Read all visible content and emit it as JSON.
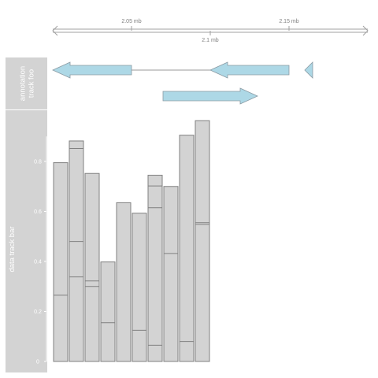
{
  "chart_data": {
    "type": "bar",
    "genome_axis": {
      "unit": "mb",
      "range": [
        2.0,
        2.2
      ],
      "ticks": [
        {
          "value": 2.05,
          "label": "2.05 mb"
        },
        {
          "value": 2.1,
          "label": "2.1 mb"
        },
        {
          "value": 2.15,
          "label": "2.15 mb"
        }
      ]
    },
    "tracks": [
      {
        "name": "annotation track foo",
        "type": "annotation",
        "features": [
          {
            "start": 2.0,
            "end": 2.05,
            "strand": "-",
            "row": 0
          },
          {
            "start": 2.1,
            "end": 2.15,
            "strand": "-",
            "row": 0
          },
          {
            "start": 2.16,
            "end": 2.165,
            "strand": "-",
            "row": 0
          },
          {
            "start": 2.07,
            "end": 2.13,
            "strand": "+",
            "row": 1
          }
        ],
        "connectors": [
          {
            "from": 2.05,
            "to": 2.1,
            "row": 0
          }
        ],
        "fill": "#add8e6",
        "stroke": "#8a9aa3"
      },
      {
        "name": "data track bar",
        "type": "histogram",
        "ylim": [
          0,
          1.0
        ],
        "y_ticks": [
          0,
          0.2,
          0.4,
          0.6,
          0.8
        ],
        "y_tick_labels": [
          "0",
          "0.2",
          "0.4",
          "0.6",
          "0.8"
        ],
        "bins": [
          {
            "start": 2.0,
            "end": 2.01,
            "values": [
              0.265,
              0.795
            ]
          },
          {
            "start": 2.01,
            "end": 2.02,
            "values": [
              0.338,
              0.48,
              0.852,
              0.882
            ]
          },
          {
            "start": 2.02,
            "end": 2.03,
            "values": [
              0.3,
              0.322,
              0.752
            ]
          },
          {
            "start": 2.03,
            "end": 2.04,
            "values": [
              0.155,
              0.398
            ]
          },
          {
            "start": 2.04,
            "end": 2.05,
            "values": [
              0.635
            ]
          },
          {
            "start": 2.05,
            "end": 2.06,
            "values": [
              0.125,
              0.593
            ]
          },
          {
            "start": 2.06,
            "end": 2.07,
            "values": [
              0.065,
              0.615,
              0.702,
              0.745
            ]
          },
          {
            "start": 2.07,
            "end": 2.08,
            "values": [
              0.432,
              0.7
            ]
          },
          {
            "start": 2.08,
            "end": 2.09,
            "values": [
              0.08,
              0.905
            ]
          },
          {
            "start": 2.09,
            "end": 2.1,
            "values": [
              0.548,
              0.555,
              0.963
            ]
          }
        ],
        "fill": "#d3d3d3",
        "stroke": "#808080"
      }
    ],
    "colors": {
      "panel_strip": "#d3d3d3",
      "axis_gray": "#a0a0a0",
      "title_text": "#ffffff"
    }
  }
}
